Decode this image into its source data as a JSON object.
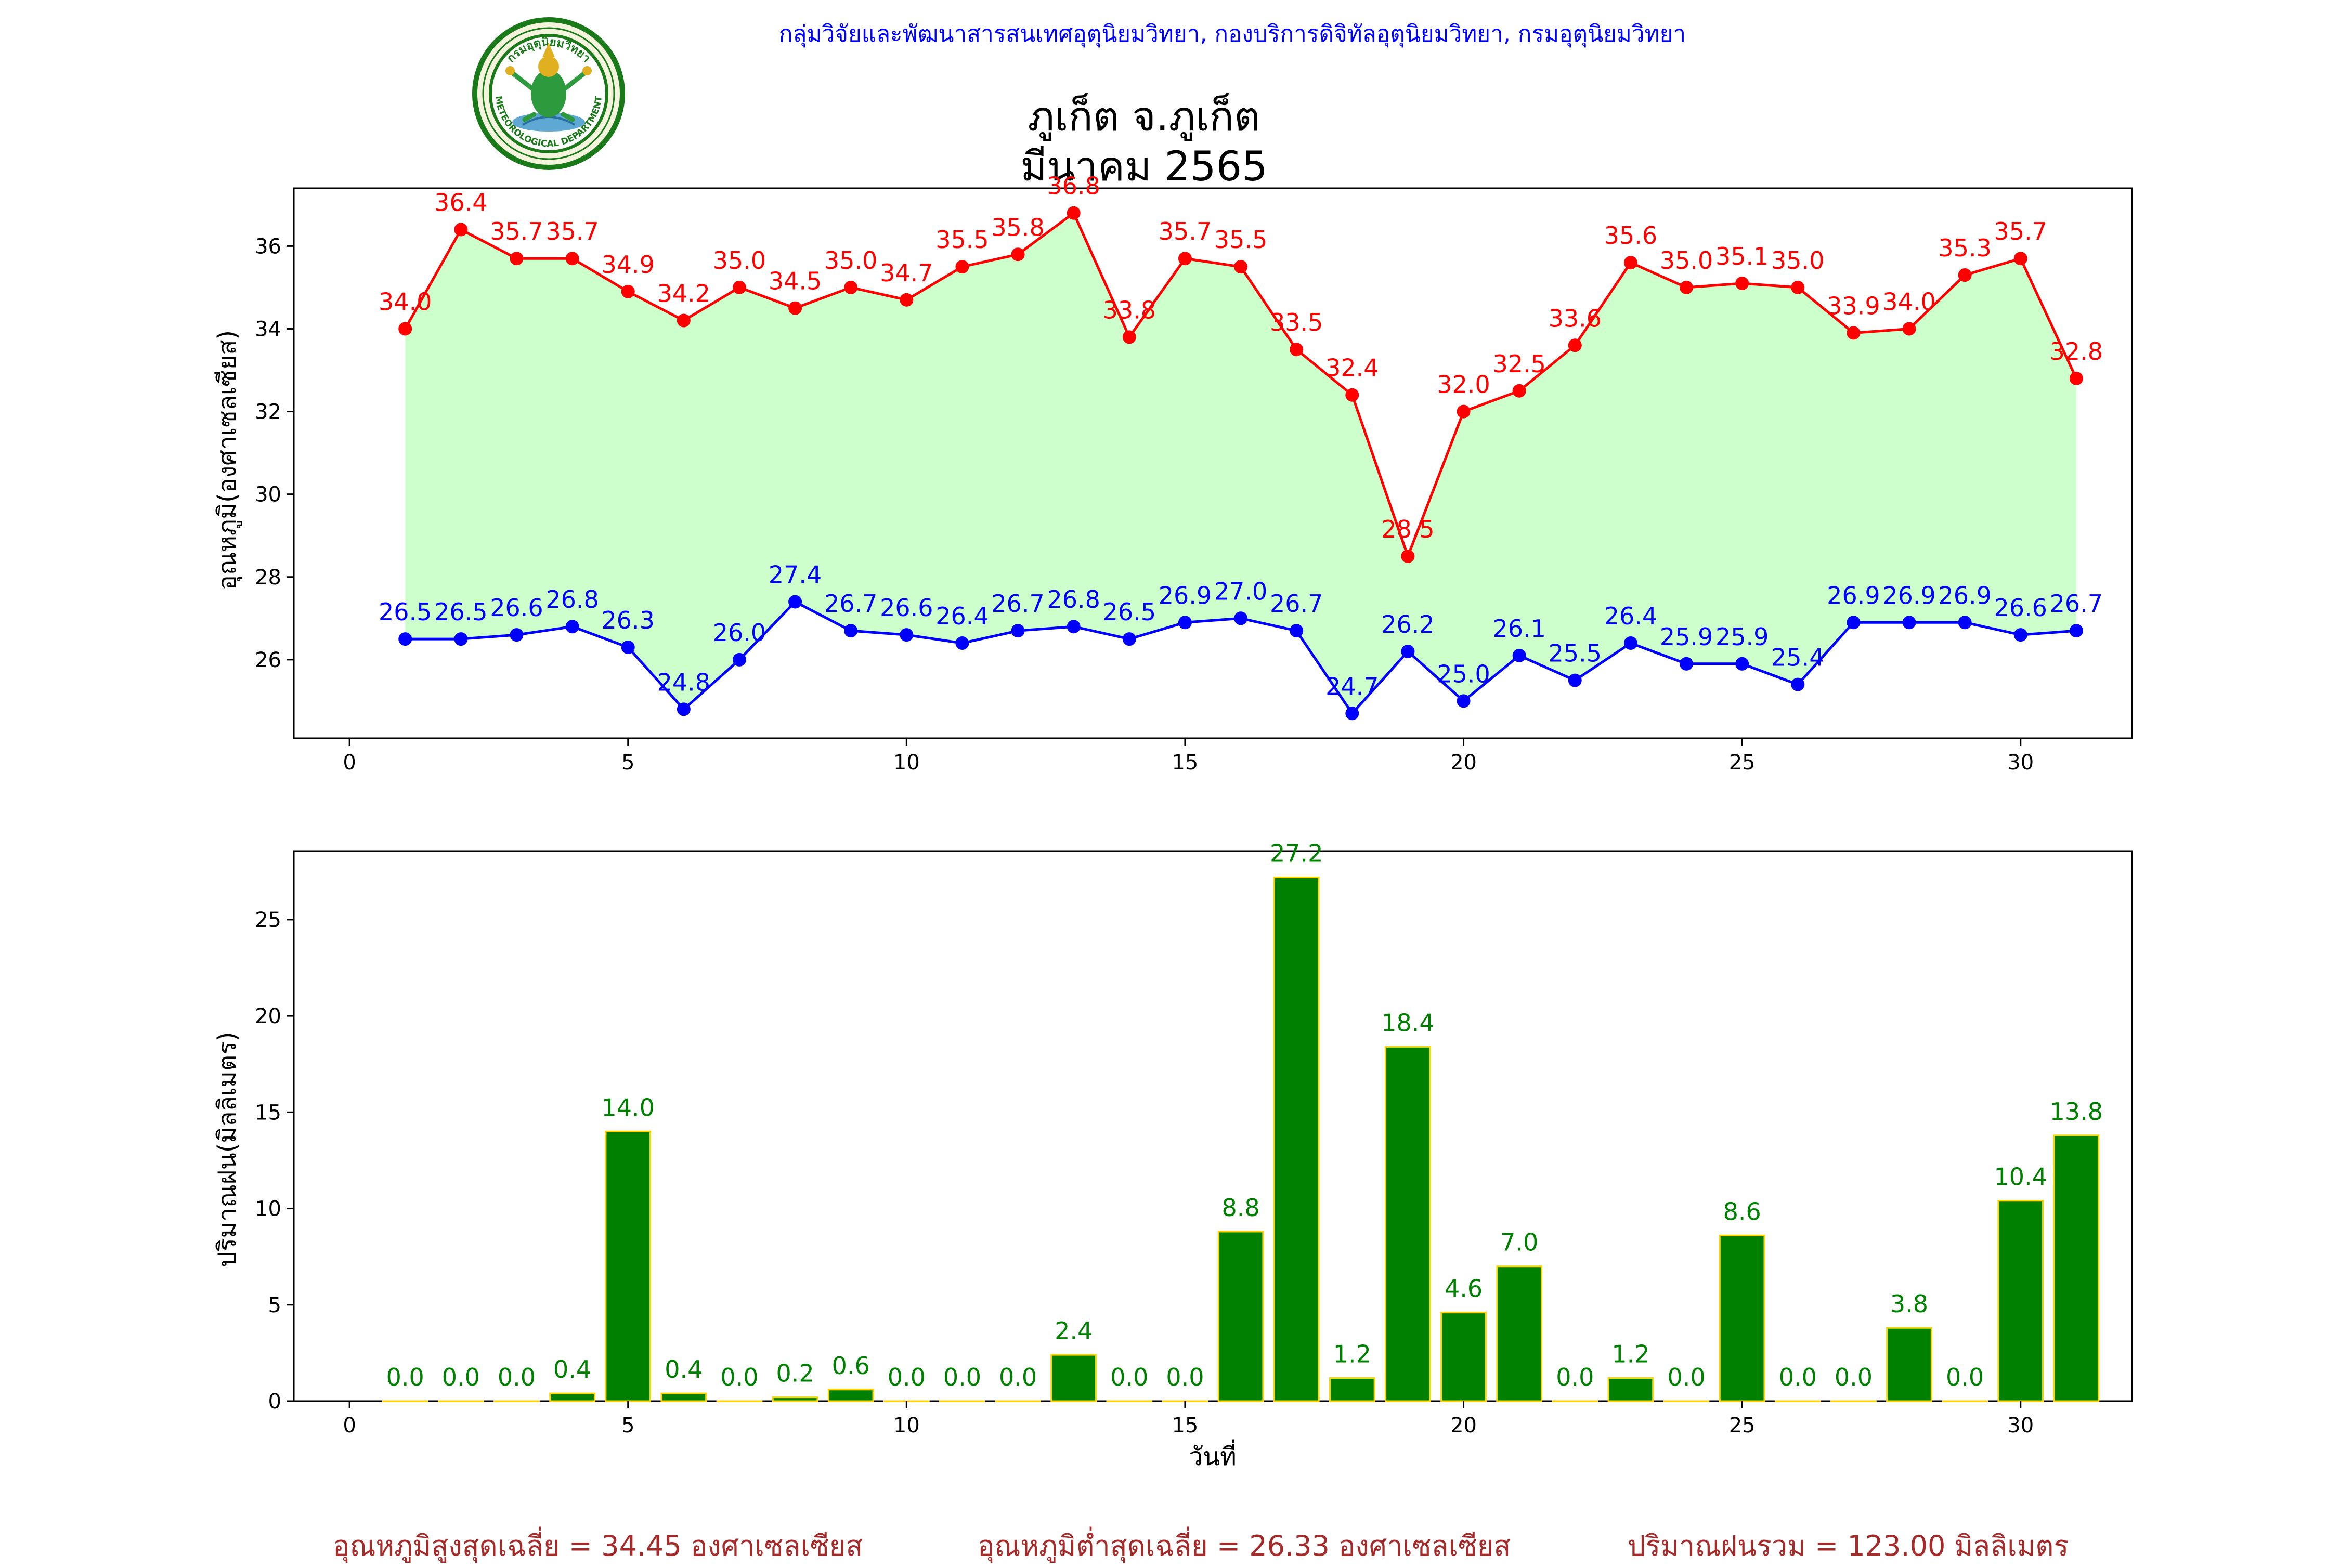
{
  "header": {
    "org_line": "กลุ่มวิจัยและพัฒนาสารสนเทศอุตุนิยมวิทยา, กองบริการดิจิทัลอุตุนิยมวิทยา, กรมอุตุนิยมวิทยา",
    "logo_text_top": "กรมอุตุนิยมวิทยา",
    "logo_text_bottom": "METEOROLOGICAL DEPARTMENT",
    "title_line1": "ภูเก็ต จ.ภูเก็ต",
    "title_line2": "มีนาคม 2565"
  },
  "colors": {
    "max_line": "#ff0000",
    "min_line": "#0000ff",
    "fill": "#ccffcc",
    "bar_fill": "#008000",
    "bar_edge": "#ffd700",
    "bar_label": "#008000",
    "summary": "#a52a2a"
  },
  "chart_data": [
    {
      "type": "line",
      "ylabel": "อุณหภูมิ(องศาเซลเซียส)",
      "xlabel": "",
      "xlim": [
        -1,
        32
      ],
      "ylim": [
        24.1,
        37.4
      ],
      "xticks": [
        0,
        5,
        10,
        15,
        20,
        25,
        30
      ],
      "yticks": [
        26,
        28,
        30,
        32,
        34,
        36
      ],
      "x": [
        1,
        2,
        3,
        4,
        5,
        6,
        7,
        8,
        9,
        10,
        11,
        12,
        13,
        14,
        15,
        16,
        17,
        18,
        19,
        20,
        21,
        22,
        23,
        24,
        25,
        26,
        27,
        28,
        29,
        30,
        31
      ],
      "fill_between": true,
      "series": [
        {
          "key": "max",
          "values": [
            34.0,
            36.4,
            35.7,
            35.7,
            34.9,
            34.2,
            35.0,
            34.5,
            35.0,
            34.7,
            35.5,
            35.8,
            36.8,
            33.8,
            35.7,
            35.5,
            33.5,
            32.4,
            28.5,
            32.0,
            32.5,
            33.6,
            35.6,
            35.0,
            35.1,
            35.0,
            33.9,
            34.0,
            35.3,
            35.7,
            32.8
          ]
        },
        {
          "key": "min",
          "values": [
            26.5,
            26.5,
            26.6,
            26.8,
            26.3,
            24.8,
            26.0,
            27.4,
            26.7,
            26.6,
            26.4,
            26.7,
            26.8,
            26.5,
            26.9,
            27.0,
            26.7,
            24.7,
            26.2,
            25.0,
            26.1,
            25.5,
            26.4,
            25.9,
            25.9,
            25.4,
            26.9,
            26.9,
            26.9,
            26.6,
            26.7
          ]
        }
      ]
    },
    {
      "type": "bar",
      "ylabel": "ปริมาณฝน(มิลลิเมตร)",
      "xlabel": "วันที่",
      "xlim": [
        -1,
        32
      ],
      "ylim": [
        0,
        28.56
      ],
      "xticks": [
        0,
        5,
        10,
        15,
        20,
        25,
        30
      ],
      "yticks": [
        0,
        5,
        10,
        15,
        20,
        25
      ],
      "x": [
        1,
        2,
        3,
        4,
        5,
        6,
        7,
        8,
        9,
        10,
        11,
        12,
        13,
        14,
        15,
        16,
        17,
        18,
        19,
        20,
        21,
        22,
        23,
        24,
        25,
        26,
        27,
        28,
        29,
        30,
        31
      ],
      "values": [
        0.0,
        0.0,
        0.0,
        0.4,
        14.0,
        0.4,
        0.0,
        0.2,
        0.6,
        0.0,
        0.0,
        0.0,
        2.4,
        0.0,
        0.0,
        8.8,
        27.2,
        1.2,
        18.4,
        4.6,
        7.0,
        0.0,
        1.2,
        0.0,
        8.6,
        0.0,
        0.0,
        3.8,
        0.0,
        10.4,
        13.8
      ]
    }
  ],
  "summary": {
    "avg_max": "อุณหภูมิสูงสุดเฉลี่ย = 34.45 องศาเซลเซียส",
    "avg_min": "อุณหภูมิต่ำสุดเฉลี่ย = 26.33 องศาเซลเซียส",
    "total_rain": "ปริมาณฝนรวม = 123.00 มิลลิเมตร"
  }
}
